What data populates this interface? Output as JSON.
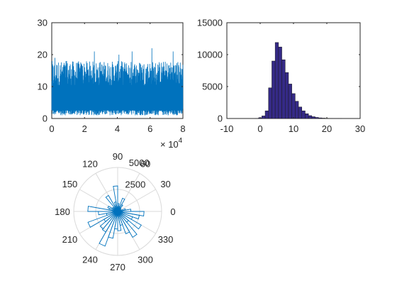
{
  "colors": {
    "line_series": "#0072bd",
    "hist_fill": "#352a87",
    "hist_edge": "#1a1a1a",
    "rose_stroke": "#0072bd",
    "axis": "#262626",
    "polar_grid": "#d9d9d9"
  },
  "chart_data": [
    {
      "type": "line",
      "title": "",
      "xlabel": "",
      "ylabel": "",
      "xlim": [
        0,
        80000
      ],
      "ylim": [
        0,
        30
      ],
      "x_ticks": [
        0,
        2,
        4,
        6,
        8
      ],
      "x_tick_labels": [
        "0",
        "2",
        "4",
        "6",
        "8"
      ],
      "x_exponent_label": "× 10",
      "x_exponent_power": "4",
      "y_ticks": [
        0,
        10,
        20,
        30
      ],
      "y_tick_labels": [
        "0",
        "10",
        "20",
        "30"
      ],
      "series": [
        {
          "samples": 80000,
          "typical_range": [
            1,
            12
          ],
          "typical_peak": 18,
          "max_values": [
            {
              "x": 2000,
              "y": 19
            },
            {
              "x": 9000,
              "y": 18
            },
            {
              "x": 26000,
              "y": 21
            },
            {
              "x": 41000,
              "y": 20
            },
            {
              "x": 49000,
              "y": 21
            },
            {
              "x": 61000,
              "y": 22
            },
            {
              "x": 74000,
              "y": 21
            }
          ]
        }
      ]
    },
    {
      "type": "bar",
      "title": "",
      "xlabel": "",
      "ylabel": "",
      "xlim": [
        -10,
        30
      ],
      "ylim": [
        0,
        15000
      ],
      "x_ticks": [
        -10,
        0,
        10,
        20,
        30
      ],
      "x_tick_labels": [
        "-10",
        "0",
        "10",
        "20",
        "30"
      ],
      "y_ticks": [
        0,
        5000,
        10000,
        15000
      ],
      "y_tick_labels": [
        "0",
        "5000",
        "10000",
        "15000"
      ],
      "bin_width": 1,
      "bin_centers": [
        -1,
        0,
        1,
        2,
        3,
        4,
        5,
        6,
        7,
        8,
        9,
        10,
        11,
        12,
        13,
        14,
        15,
        16,
        17,
        18,
        19,
        20,
        21,
        22,
        23,
        24
      ],
      "values": [
        20,
        120,
        400,
        1200,
        4800,
        9000,
        11900,
        11200,
        9200,
        7200,
        5400,
        3900,
        2700,
        1800,
        1200,
        750,
        450,
        280,
        170,
        100,
        60,
        35,
        20,
        12,
        6,
        3
      ]
    },
    {
      "type": "rose",
      "title": "",
      "r_ticks": [
        2500,
        5000
      ],
      "r_tick_labels": [
        "2500",
        "5000"
      ],
      "rmax": 5000,
      "theta_ticks": [
        0,
        30,
        60,
        90,
        120,
        150,
        180,
        210,
        240,
        270,
        300,
        330
      ],
      "theta_tick_labels": [
        "0",
        "30",
        "60",
        "90",
        "120",
        "150",
        "180",
        "210",
        "240",
        "270",
        "300",
        "330"
      ],
      "bin_width_deg": 10,
      "bin_centers_deg": [
        5,
        15,
        25,
        35,
        45,
        55,
        65,
        75,
        85,
        95,
        105,
        115,
        125,
        135,
        145,
        155,
        165,
        175,
        185,
        195,
        205,
        215,
        225,
        235,
        245,
        255,
        265,
        275,
        285,
        295,
        305,
        315,
        325,
        335,
        345,
        355
      ],
      "values": [
        1500,
        900,
        400,
        300,
        500,
        900,
        1600,
        600,
        900,
        2900,
        1100,
        700,
        2100,
        600,
        700,
        1200,
        1000,
        3400,
        2200,
        1300,
        3600,
        1800,
        2600,
        2700,
        4200,
        3100,
        2000,
        2200,
        1600,
        2700,
        3400,
        1600,
        3100,
        1800,
        2500,
        3000
      ]
    }
  ]
}
